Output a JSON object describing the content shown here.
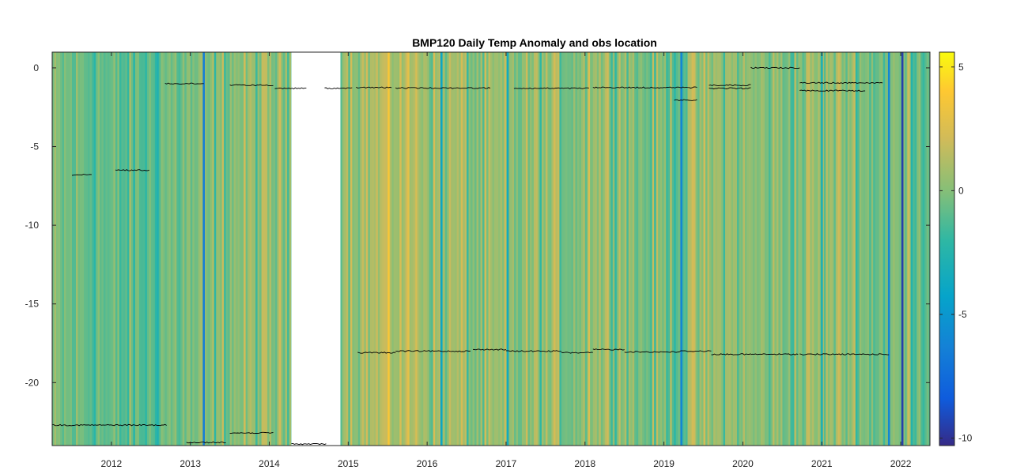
{
  "chart_data": {
    "type": "heatmap",
    "title": "BMP120 Daily Temp Anomaly and obs location",
    "xlabel": "",
    "ylabel": "",
    "xlim": [
      2011.25,
      2022.37
    ],
    "ylim": [
      -24,
      1
    ],
    "x_ticks": [
      2012,
      2013,
      2014,
      2015,
      2016,
      2017,
      2018,
      2019,
      2020,
      2021,
      2022
    ],
    "x_tick_labels": [
      "2012",
      "2013",
      "2014",
      "2015",
      "2016",
      "2017",
      "2018",
      "2019",
      "2020",
      "2021",
      "2022"
    ],
    "y_ticks": [
      0,
      -5,
      -10,
      -15,
      -20
    ],
    "y_tick_labels": [
      "0",
      "-5",
      "-10",
      "-15",
      "-20"
    ],
    "colorbar": {
      "range": [
        -10.3,
        5.6
      ],
      "ticks": [
        5,
        0,
        -5,
        -10
      ],
      "tick_labels": [
        "5",
        "0",
        "-5",
        "-10"
      ],
      "colormap": "parula",
      "placement": "right"
    },
    "data_gap": [
      2014.28,
      2014.9
    ],
    "anomaly_bands": [
      {
        "x0": 2011.25,
        "x1": 2011.9,
        "value": -0.6
      },
      {
        "x0": 2011.9,
        "x1": 2012.6,
        "value": -1.1
      },
      {
        "x0": 2012.6,
        "x1": 2013.4,
        "value": -0.4
      },
      {
        "x0": 2013.4,
        "x1": 2014.28,
        "value": 0.2
      },
      {
        "x0": 2014.9,
        "x1": 2015.4,
        "value": 1.0
      },
      {
        "x0": 2015.4,
        "x1": 2016.0,
        "value": 1.3
      },
      {
        "x0": 2016.0,
        "x1": 2016.5,
        "value": 0.6
      },
      {
        "x0": 2016.5,
        "x1": 2017.2,
        "value": 0.0
      },
      {
        "x0": 2017.2,
        "x1": 2018.0,
        "value": 0.2
      },
      {
        "x0": 2018.0,
        "x1": 2018.6,
        "value": 0.6
      },
      {
        "x0": 2018.6,
        "x1": 2019.3,
        "value": -0.3
      },
      {
        "x0": 2019.3,
        "x1": 2020.0,
        "value": 0.3
      },
      {
        "x0": 2020.0,
        "x1": 2020.8,
        "value": 0.0
      },
      {
        "x0": 2020.8,
        "x1": 2021.5,
        "value": 0.4
      },
      {
        "x0": 2021.5,
        "x1": 2022.37,
        "value": -0.3
      }
    ],
    "anomaly_spikes": [
      {
        "x": 2013.17,
        "value": -6.5
      },
      {
        "x": 2016.18,
        "value": -4.0
      },
      {
        "x": 2017.02,
        "value": -3.5
      },
      {
        "x": 2018.05,
        "value": 2.5
      },
      {
        "x": 2019.22,
        "value": -6.0
      },
      {
        "x": 2021.0,
        "value": -3.0
      },
      {
        "x": 2021.85,
        "value": -6.0
      },
      {
        "x": 2022.02,
        "value": -9.5
      },
      {
        "x": 2022.1,
        "value": 2.0
      }
    ],
    "obs_series": [
      {
        "x0": 2011.5,
        "x1": 2011.75,
        "y": -6.8
      },
      {
        "x0": 2012.05,
        "x1": 2012.48,
        "y": -6.5
      },
      {
        "x0": 2011.25,
        "x1": 2012.7,
        "y": -22.7
      },
      {
        "x0": 2012.68,
        "x1": 2013.17,
        "y": -1.0
      },
      {
        "x0": 2012.95,
        "x1": 2013.45,
        "y": -23.8
      },
      {
        "x0": 2013.5,
        "x1": 2014.05,
        "y": -1.1
      },
      {
        "x0": 2013.5,
        "x1": 2014.05,
        "y": -23.2
      },
      {
        "x0": 2014.07,
        "x1": 2014.47,
        "y": -1.3
      },
      {
        "x0": 2014.28,
        "x1": 2014.72,
        "y": -23.9
      },
      {
        "x0": 2014.7,
        "x1": 2015.05,
        "y": -1.3
      },
      {
        "x0": 2015.1,
        "x1": 2015.55,
        "y": -1.25
      },
      {
        "x0": 2015.6,
        "x1": 2016.8,
        "y": -1.28
      },
      {
        "x0": 2015.12,
        "x1": 2015.6,
        "y": -18.1
      },
      {
        "x0": 2015.6,
        "x1": 2016.55,
        "y": -18.0
      },
      {
        "x0": 2016.58,
        "x1": 2017.0,
        "y": -17.9
      },
      {
        "x0": 2017.0,
        "x1": 2017.7,
        "y": -18.0
      },
      {
        "x0": 2017.7,
        "x1": 2018.1,
        "y": -18.1
      },
      {
        "x0": 2018.1,
        "x1": 2018.5,
        "y": -17.9
      },
      {
        "x0": 2018.5,
        "x1": 2019.2,
        "y": -18.05
      },
      {
        "x0": 2019.2,
        "x1": 2019.6,
        "y": -18.0
      },
      {
        "x0": 2019.6,
        "x1": 2020.1,
        "y": -18.2
      },
      {
        "x0": 2020.1,
        "x1": 2020.7,
        "y": -18.2
      },
      {
        "x0": 2020.72,
        "x1": 2021.4,
        "y": -18.2
      },
      {
        "x0": 2021.4,
        "x1": 2021.85,
        "y": -18.2
      },
      {
        "x0": 2017.1,
        "x1": 2018.05,
        "y": -1.3
      },
      {
        "x0": 2018.1,
        "x1": 2019.42,
        "y": -1.25
      },
      {
        "x0": 2019.13,
        "x1": 2019.42,
        "y": -2.05
      },
      {
        "x0": 2019.57,
        "x1": 2020.1,
        "y": -1.1
      },
      {
        "x0": 2019.57,
        "x1": 2020.1,
        "y": -1.3
      },
      {
        "x0": 2020.1,
        "x1": 2020.72,
        "y": 0.0
      },
      {
        "x0": 2020.72,
        "x1": 2021.77,
        "y": -0.95
      },
      {
        "x0": 2020.72,
        "x1": 2021.55,
        "y": -1.45
      }
    ]
  }
}
